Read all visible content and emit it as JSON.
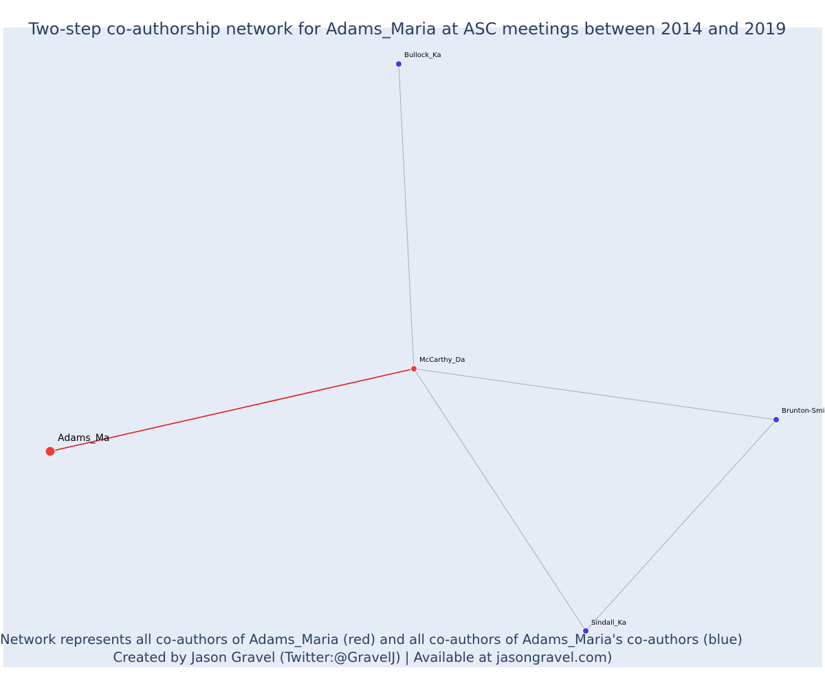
{
  "title": "Two-step co-authorship network for Adams_Maria at ASC meetings between 2014 and 2019",
  "caption": {
    "line1": "Network represents all co-authors of Adams_Maria (red) and all co-authors of Adams_Maria's co-authors (blue)",
    "line2": "Created by Jason Gravel (Twitter:@GravelJ) | Available at jasongravel.com)"
  },
  "colors": {
    "background": "#e5ecf6",
    "focal_node": "#ef3b3b",
    "coauthor_node": "#ef3b3b",
    "second_step_node": "#3b3bef",
    "focal_edge": "#e31a1c",
    "other_edge": "#a9abbc",
    "text": "#2a3f5f"
  },
  "network": {
    "nodes": [
      {
        "id": "adams",
        "label": "Adams_Ma",
        "group": "focal"
      },
      {
        "id": "mccarthy",
        "label": "McCarthy_Da",
        "group": "coauthor"
      },
      {
        "id": "bullock",
        "label": "Bullock_Ka",
        "group": "second_step"
      },
      {
        "id": "brunton",
        "label": "Brunton-Smi",
        "group": "second_step"
      },
      {
        "id": "sindall",
        "label": "Sindall_Ka",
        "group": "second_step"
      }
    ],
    "edges": [
      {
        "from": "adams",
        "to": "mccarthy",
        "type": "focal"
      },
      {
        "from": "mccarthy",
        "to": "bullock",
        "type": "other"
      },
      {
        "from": "mccarthy",
        "to": "brunton",
        "type": "other"
      },
      {
        "from": "mccarthy",
        "to": "sindall",
        "type": "other"
      },
      {
        "from": "brunton",
        "to": "sindall",
        "type": "other"
      }
    ]
  }
}
